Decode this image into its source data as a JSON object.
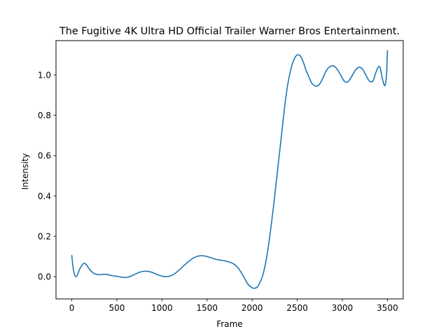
{
  "chart_data": {
    "type": "line",
    "title": "The Fugitive  4K Ultra HD Official Trailer  Warner Bros Entertainment.",
    "xlabel": "Frame",
    "ylabel": "Intensity",
    "xlim": [
      -175,
      3675
    ],
    "ylim": [
      -0.11,
      1.17
    ],
    "xticks": [
      0,
      500,
      1000,
      1500,
      2000,
      2500,
      3000,
      3500
    ],
    "yticks": [
      0.0,
      0.2,
      0.4,
      0.6,
      0.8,
      1.0
    ],
    "xtick_labels": [
      "0",
      "500",
      "1000",
      "1500",
      "2000",
      "2500",
      "3000",
      "3500"
    ],
    "ytick_labels": [
      "0.0",
      "0.2",
      "0.4",
      "0.6",
      "0.8",
      "1.0"
    ],
    "grid": false,
    "line_color": "#1f77b4",
    "series": [
      {
        "x": [
          0,
          20,
          50,
          90,
          130,
          160,
          200,
          250,
          300,
          350,
          400,
          450,
          500,
          550,
          600,
          650,
          700,
          750,
          800,
          850,
          900,
          950,
          1000,
          1050,
          1100,
          1150,
          1200,
          1250,
          1300,
          1350,
          1400,
          1450,
          1500,
          1550,
          1600,
          1650,
          1700,
          1750,
          1800,
          1850,
          1900,
          1950,
          2000,
          2030,
          2060,
          2090,
          2120,
          2150,
          2180,
          2210,
          2240,
          2270,
          2300,
          2330,
          2360,
          2390,
          2420,
          2450,
          2480,
          2510,
          2540,
          2570,
          2600,
          2630,
          2660,
          2700,
          2740,
          2780,
          2820,
          2860,
          2900,
          2940,
          2980,
          3020,
          3060,
          3100,
          3140,
          3180,
          3220,
          3260,
          3300,
          3340,
          3370,
          3400,
          3420,
          3440,
          3460,
          3475,
          3490,
          3500
        ],
        "y": [
          0.105,
          0.03,
          0.0,
          0.04,
          0.065,
          0.06,
          0.035,
          0.015,
          0.01,
          0.012,
          0.01,
          0.005,
          0.002,
          -0.002,
          -0.004,
          0.002,
          0.012,
          0.022,
          0.027,
          0.026,
          0.02,
          0.01,
          0.003,
          0.0,
          0.005,
          0.018,
          0.037,
          0.058,
          0.077,
          0.093,
          0.102,
          0.104,
          0.1,
          0.093,
          0.086,
          0.082,
          0.078,
          0.072,
          0.062,
          0.04,
          0.005,
          -0.035,
          -0.055,
          -0.057,
          -0.05,
          -0.025,
          0.01,
          0.07,
          0.15,
          0.25,
          0.36,
          0.48,
          0.6,
          0.72,
          0.84,
          0.94,
          1.01,
          1.06,
          1.09,
          1.1,
          1.09,
          1.06,
          1.02,
          0.99,
          0.96,
          0.945,
          0.95,
          0.98,
          1.02,
          1.04,
          1.045,
          1.03,
          1.0,
          0.97,
          0.965,
          0.99,
          1.02,
          1.038,
          1.03,
          1.0,
          0.97,
          0.97,
          1.01,
          1.04,
          1.035,
          0.99,
          0.955,
          0.95,
          1.0,
          1.12
        ]
      }
    ]
  }
}
